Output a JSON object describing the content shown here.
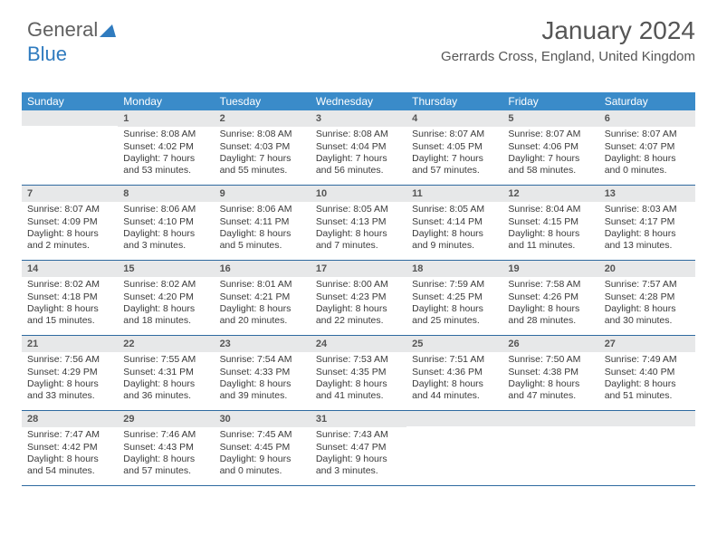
{
  "logo": {
    "part1": "General",
    "part2": "Blue"
  },
  "title": "January 2024",
  "location": "Gerrards Cross, England, United Kingdom",
  "colors": {
    "header_bg": "#3a8bc9",
    "header_text": "#ffffff",
    "daynum_bg": "#e7e8e9",
    "rule": "#2f6aa0",
    "body_text": "#3a3a3a"
  },
  "dow": [
    "Sunday",
    "Monday",
    "Tuesday",
    "Wednesday",
    "Thursday",
    "Friday",
    "Saturday"
  ],
  "weeks": [
    [
      {
        "n": "",
        "sr": "",
        "ss": "",
        "d1": "",
        "d2": ""
      },
      {
        "n": "1",
        "sr": "Sunrise: 8:08 AM",
        "ss": "Sunset: 4:02 PM",
        "d1": "Daylight: 7 hours",
        "d2": "and 53 minutes."
      },
      {
        "n": "2",
        "sr": "Sunrise: 8:08 AM",
        "ss": "Sunset: 4:03 PM",
        "d1": "Daylight: 7 hours",
        "d2": "and 55 minutes."
      },
      {
        "n": "3",
        "sr": "Sunrise: 8:08 AM",
        "ss": "Sunset: 4:04 PM",
        "d1": "Daylight: 7 hours",
        "d2": "and 56 minutes."
      },
      {
        "n": "4",
        "sr": "Sunrise: 8:07 AM",
        "ss": "Sunset: 4:05 PM",
        "d1": "Daylight: 7 hours",
        "d2": "and 57 minutes."
      },
      {
        "n": "5",
        "sr": "Sunrise: 8:07 AM",
        "ss": "Sunset: 4:06 PM",
        "d1": "Daylight: 7 hours",
        "d2": "and 58 minutes."
      },
      {
        "n": "6",
        "sr": "Sunrise: 8:07 AM",
        "ss": "Sunset: 4:07 PM",
        "d1": "Daylight: 8 hours",
        "d2": "and 0 minutes."
      }
    ],
    [
      {
        "n": "7",
        "sr": "Sunrise: 8:07 AM",
        "ss": "Sunset: 4:09 PM",
        "d1": "Daylight: 8 hours",
        "d2": "and 2 minutes."
      },
      {
        "n": "8",
        "sr": "Sunrise: 8:06 AM",
        "ss": "Sunset: 4:10 PM",
        "d1": "Daylight: 8 hours",
        "d2": "and 3 minutes."
      },
      {
        "n": "9",
        "sr": "Sunrise: 8:06 AM",
        "ss": "Sunset: 4:11 PM",
        "d1": "Daylight: 8 hours",
        "d2": "and 5 minutes."
      },
      {
        "n": "10",
        "sr": "Sunrise: 8:05 AM",
        "ss": "Sunset: 4:13 PM",
        "d1": "Daylight: 8 hours",
        "d2": "and 7 minutes."
      },
      {
        "n": "11",
        "sr": "Sunrise: 8:05 AM",
        "ss": "Sunset: 4:14 PM",
        "d1": "Daylight: 8 hours",
        "d2": "and 9 minutes."
      },
      {
        "n": "12",
        "sr": "Sunrise: 8:04 AM",
        "ss": "Sunset: 4:15 PM",
        "d1": "Daylight: 8 hours",
        "d2": "and 11 minutes."
      },
      {
        "n": "13",
        "sr": "Sunrise: 8:03 AM",
        "ss": "Sunset: 4:17 PM",
        "d1": "Daylight: 8 hours",
        "d2": "and 13 minutes."
      }
    ],
    [
      {
        "n": "14",
        "sr": "Sunrise: 8:02 AM",
        "ss": "Sunset: 4:18 PM",
        "d1": "Daylight: 8 hours",
        "d2": "and 15 minutes."
      },
      {
        "n": "15",
        "sr": "Sunrise: 8:02 AM",
        "ss": "Sunset: 4:20 PM",
        "d1": "Daylight: 8 hours",
        "d2": "and 18 minutes."
      },
      {
        "n": "16",
        "sr": "Sunrise: 8:01 AM",
        "ss": "Sunset: 4:21 PM",
        "d1": "Daylight: 8 hours",
        "d2": "and 20 minutes."
      },
      {
        "n": "17",
        "sr": "Sunrise: 8:00 AM",
        "ss": "Sunset: 4:23 PM",
        "d1": "Daylight: 8 hours",
        "d2": "and 22 minutes."
      },
      {
        "n": "18",
        "sr": "Sunrise: 7:59 AM",
        "ss": "Sunset: 4:25 PM",
        "d1": "Daylight: 8 hours",
        "d2": "and 25 minutes."
      },
      {
        "n": "19",
        "sr": "Sunrise: 7:58 AM",
        "ss": "Sunset: 4:26 PM",
        "d1": "Daylight: 8 hours",
        "d2": "and 28 minutes."
      },
      {
        "n": "20",
        "sr": "Sunrise: 7:57 AM",
        "ss": "Sunset: 4:28 PM",
        "d1": "Daylight: 8 hours",
        "d2": "and 30 minutes."
      }
    ],
    [
      {
        "n": "21",
        "sr": "Sunrise: 7:56 AM",
        "ss": "Sunset: 4:29 PM",
        "d1": "Daylight: 8 hours",
        "d2": "and 33 minutes."
      },
      {
        "n": "22",
        "sr": "Sunrise: 7:55 AM",
        "ss": "Sunset: 4:31 PM",
        "d1": "Daylight: 8 hours",
        "d2": "and 36 minutes."
      },
      {
        "n": "23",
        "sr": "Sunrise: 7:54 AM",
        "ss": "Sunset: 4:33 PM",
        "d1": "Daylight: 8 hours",
        "d2": "and 39 minutes."
      },
      {
        "n": "24",
        "sr": "Sunrise: 7:53 AM",
        "ss": "Sunset: 4:35 PM",
        "d1": "Daylight: 8 hours",
        "d2": "and 41 minutes."
      },
      {
        "n": "25",
        "sr": "Sunrise: 7:51 AM",
        "ss": "Sunset: 4:36 PM",
        "d1": "Daylight: 8 hours",
        "d2": "and 44 minutes."
      },
      {
        "n": "26",
        "sr": "Sunrise: 7:50 AM",
        "ss": "Sunset: 4:38 PM",
        "d1": "Daylight: 8 hours",
        "d2": "and 47 minutes."
      },
      {
        "n": "27",
        "sr": "Sunrise: 7:49 AM",
        "ss": "Sunset: 4:40 PM",
        "d1": "Daylight: 8 hours",
        "d2": "and 51 minutes."
      }
    ],
    [
      {
        "n": "28",
        "sr": "Sunrise: 7:47 AM",
        "ss": "Sunset: 4:42 PM",
        "d1": "Daylight: 8 hours",
        "d2": "and 54 minutes."
      },
      {
        "n": "29",
        "sr": "Sunrise: 7:46 AM",
        "ss": "Sunset: 4:43 PM",
        "d1": "Daylight: 8 hours",
        "d2": "and 57 minutes."
      },
      {
        "n": "30",
        "sr": "Sunrise: 7:45 AM",
        "ss": "Sunset: 4:45 PM",
        "d1": "Daylight: 9 hours",
        "d2": "and 0 minutes."
      },
      {
        "n": "31",
        "sr": "Sunrise: 7:43 AM",
        "ss": "Sunset: 4:47 PM",
        "d1": "Daylight: 9 hours",
        "d2": "and 3 minutes."
      },
      {
        "n": "",
        "sr": "",
        "ss": "",
        "d1": "",
        "d2": ""
      },
      {
        "n": "",
        "sr": "",
        "ss": "",
        "d1": "",
        "d2": ""
      },
      {
        "n": "",
        "sr": "",
        "ss": "",
        "d1": "",
        "d2": ""
      }
    ]
  ]
}
